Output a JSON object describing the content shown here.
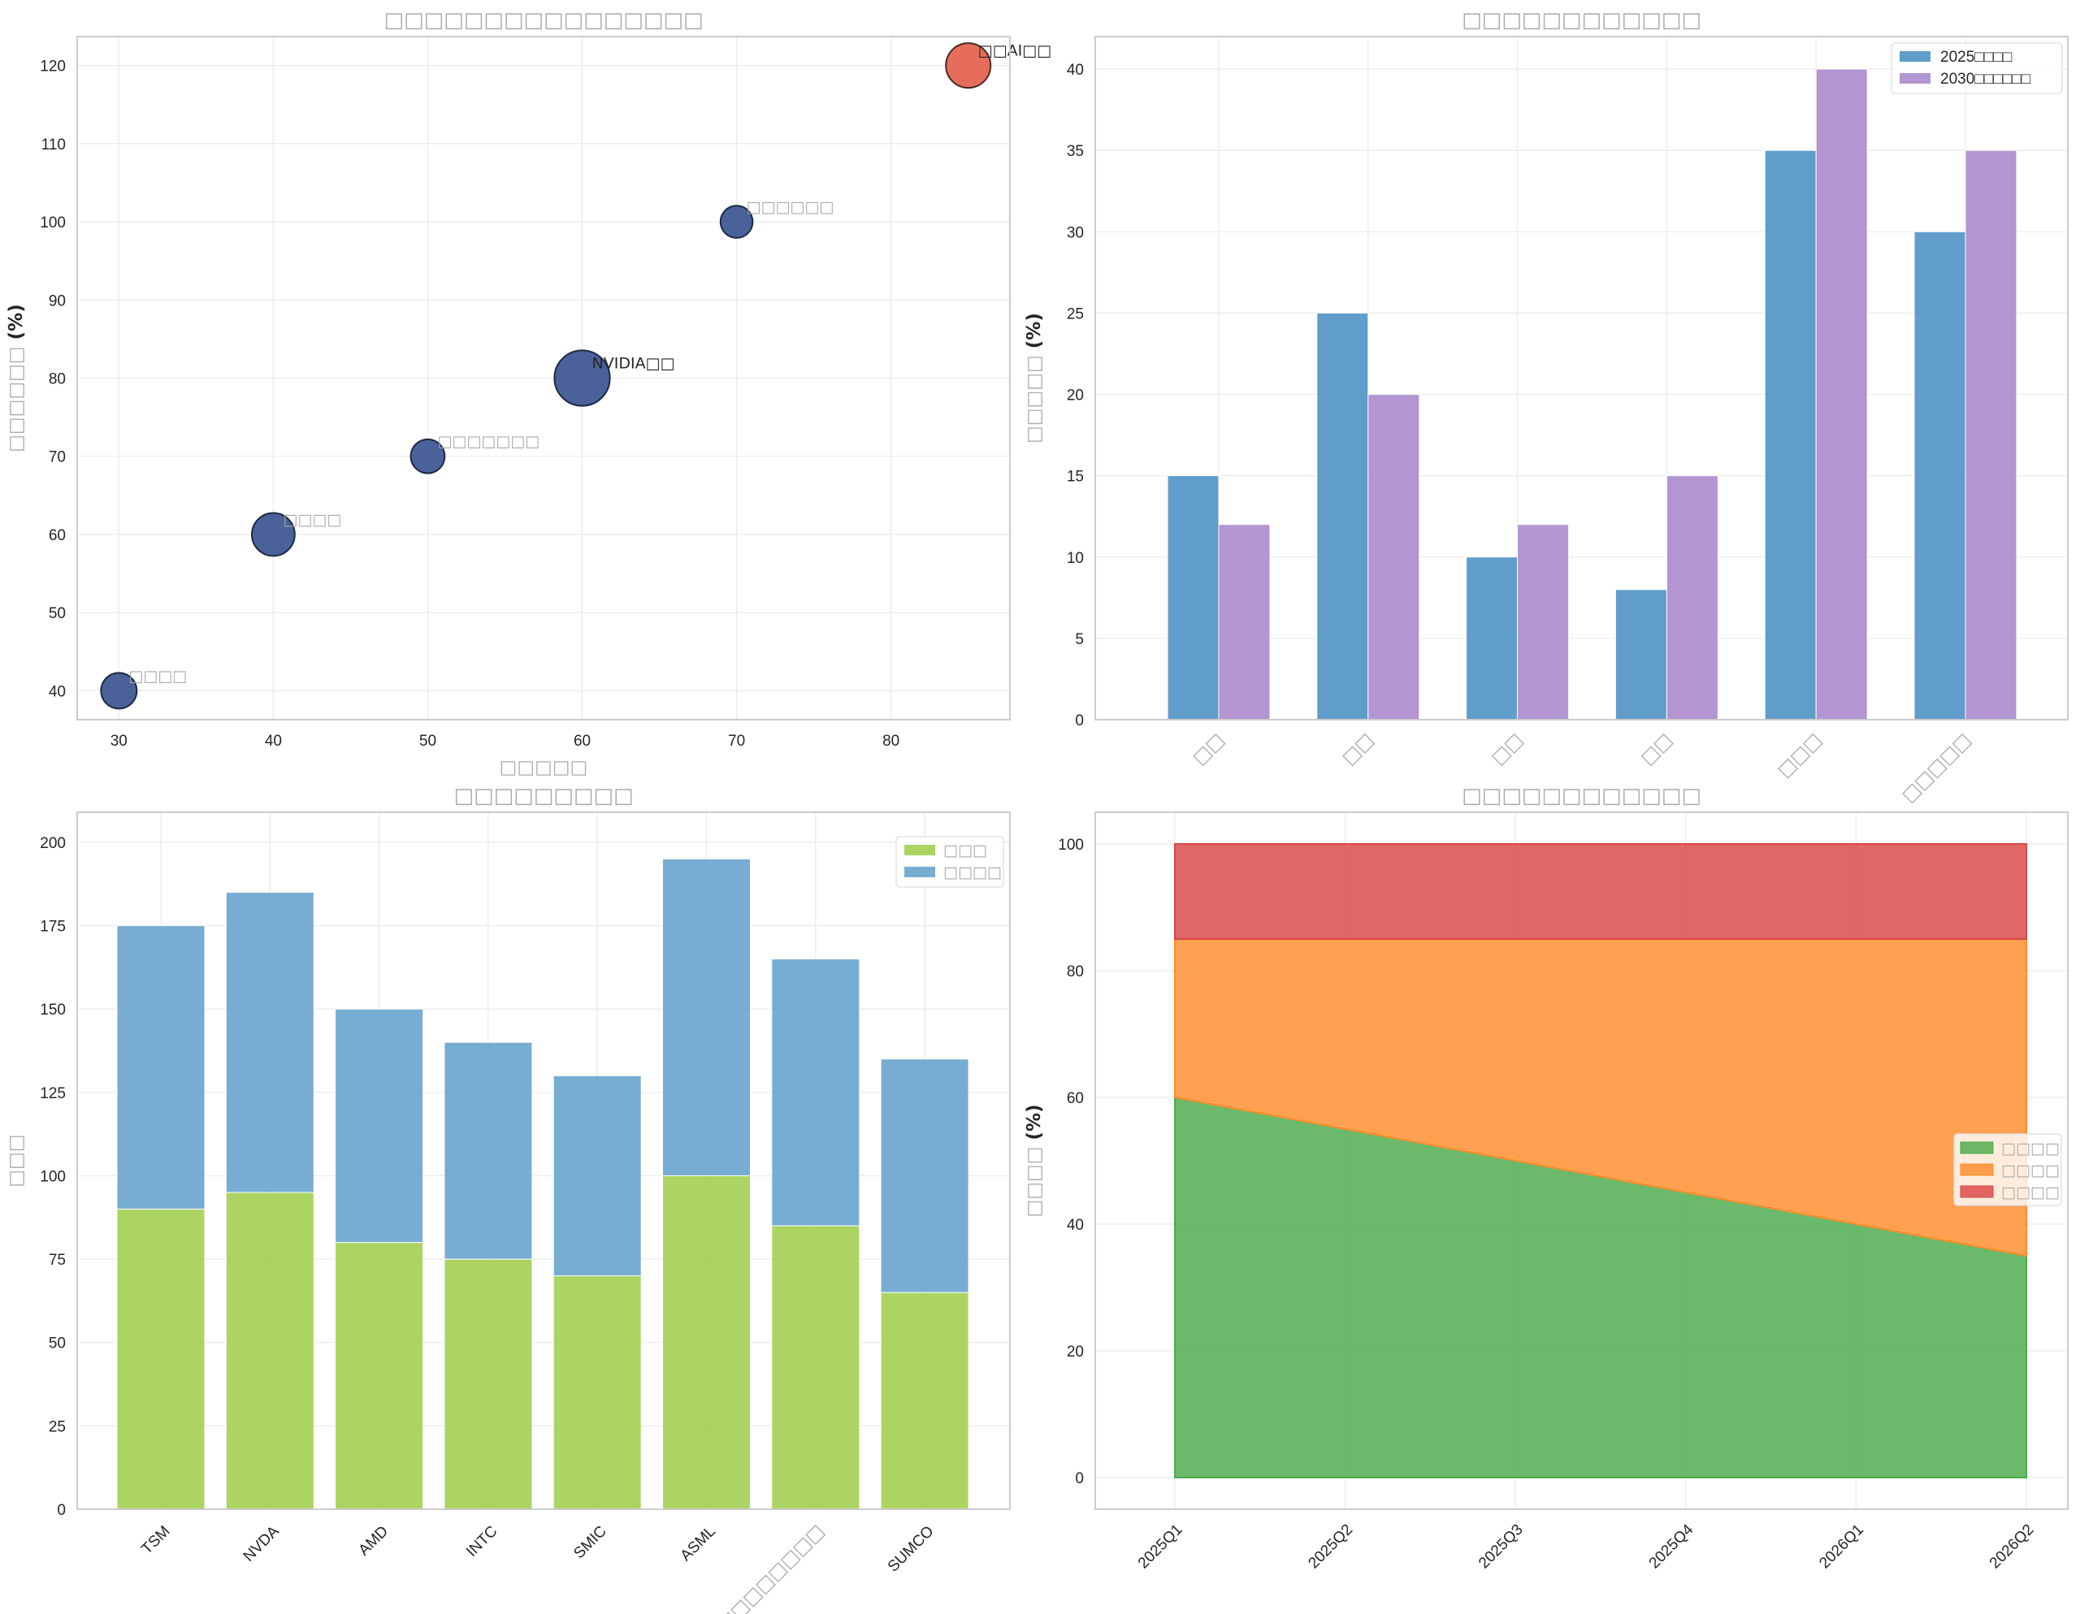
{
  "chart_data": [
    {
      "type": "scatter",
      "title": "□□□□□□□□□□□□□□□□",
      "xlabel": "□□□□□",
      "ylabel": "□□□□□□ (%)",
      "xlim": [
        27.3,
        87.7
      ],
      "ylim": [
        36.3,
        123.7
      ],
      "xticks": [
        30,
        40,
        50,
        60,
        70,
        80
      ],
      "yticks": [
        40,
        50,
        60,
        70,
        80,
        90,
        100,
        110,
        120
      ],
      "grid": true,
      "points": [
        {
          "x": 30,
          "y": 40,
          "size": 1.0,
          "label": "□□□□",
          "color": "#3b5590",
          "highlight": false
        },
        {
          "x": 40,
          "y": 60,
          "size": 1.2,
          "label": "□□□□",
          "color": "#3b5590",
          "highlight": false
        },
        {
          "x": 50,
          "y": 70,
          "size": 0.95,
          "label": "□□□□□□□",
          "color": "#3b5590",
          "highlight": false
        },
        {
          "x": 60,
          "y": 80,
          "size": 1.55,
          "label": "NVIDIA□□",
          "color": "#3b5590",
          "highlight": false
        },
        {
          "x": 70,
          "y": 100,
          "size": 0.9,
          "label": "□□□□□□",
          "color": "#3b5590",
          "highlight": false
        },
        {
          "x": 85,
          "y": 120,
          "size": 1.25,
          "label": "□□AI□□",
          "color": "#e4604e",
          "highlight": true
        }
      ]
    },
    {
      "type": "bar",
      "title": "□□□□□□□□□□□□",
      "xlabel": "",
      "ylabel": "□□□□□ (%)",
      "ylim": [
        0,
        42
      ],
      "yticks": [
        0,
        5,
        10,
        15,
        20,
        25,
        30,
        35,
        40
      ],
      "grid": true,
      "categories": [
        "□□",
        "□□",
        "□□",
        "□□",
        "□□□",
        "□□□□□"
      ],
      "series": [
        {
          "name": "2025□□□□",
          "color": "#4a90c4",
          "values": [
            15,
            25,
            10,
            8,
            35,
            30
          ]
        },
        {
          "name": "2030□□□□□□",
          "color": "#a886cc",
          "values": [
            12,
            20,
            12,
            15,
            40,
            35
          ]
        }
      ],
      "legend": "top-right"
    },
    {
      "type": "bar",
      "stacked": true,
      "title": "□□□□□□□□□",
      "xlabel": "",
      "ylabel": "□□□",
      "ylim": [
        0,
        209
      ],
      "yticks": [
        0,
        25,
        50,
        75,
        100,
        125,
        150,
        175,
        200
      ],
      "grid": true,
      "categories": [
        "TSM",
        "NVDA",
        "AMD",
        "INTC",
        "SMIC",
        "ASML",
        "□□□□□□□□",
        "SUMCO"
      ],
      "series": [
        {
          "name": "□□□",
          "color": "#9ccc48",
          "values": [
            90,
            95,
            80,
            75,
            70,
            100,
            85,
            65
          ]
        },
        {
          "name": "□□□□",
          "color": "#5f9ecb",
          "values": [
            85,
            90,
            70,
            65,
            60,
            95,
            80,
            70
          ]
        }
      ],
      "totals": [
        175,
        185,
        150,
        140,
        130,
        195,
        165,
        135
      ],
      "legend": "top-right"
    },
    {
      "type": "area",
      "stacked": true,
      "title": "□□□□□□□□□□□□",
      "xlabel": "",
      "ylabel": "□□□□ (%)",
      "ylim": [
        -5,
        105
      ],
      "yticks": [
        0,
        20,
        40,
        60,
        80,
        100
      ],
      "grid": true,
      "x": [
        "2025Q1",
        "2025Q2",
        "2025Q3",
        "2025Q4",
        "2026Q1",
        "2026Q2"
      ],
      "series": [
        {
          "name": "□□□□",
          "color": "#4aab4a",
          "values": [
            60,
            55,
            50,
            45,
            40,
            35
          ]
        },
        {
          "name": "□□□□",
          "color": "#ff8c2a",
          "values": [
            25,
            30,
            35,
            40,
            45,
            50
          ]
        },
        {
          "name": "□□□□",
          "color": "#db4646",
          "values": [
            15,
            15,
            15,
            15,
            15,
            15
          ]
        }
      ],
      "legend": "center-right"
    }
  ]
}
